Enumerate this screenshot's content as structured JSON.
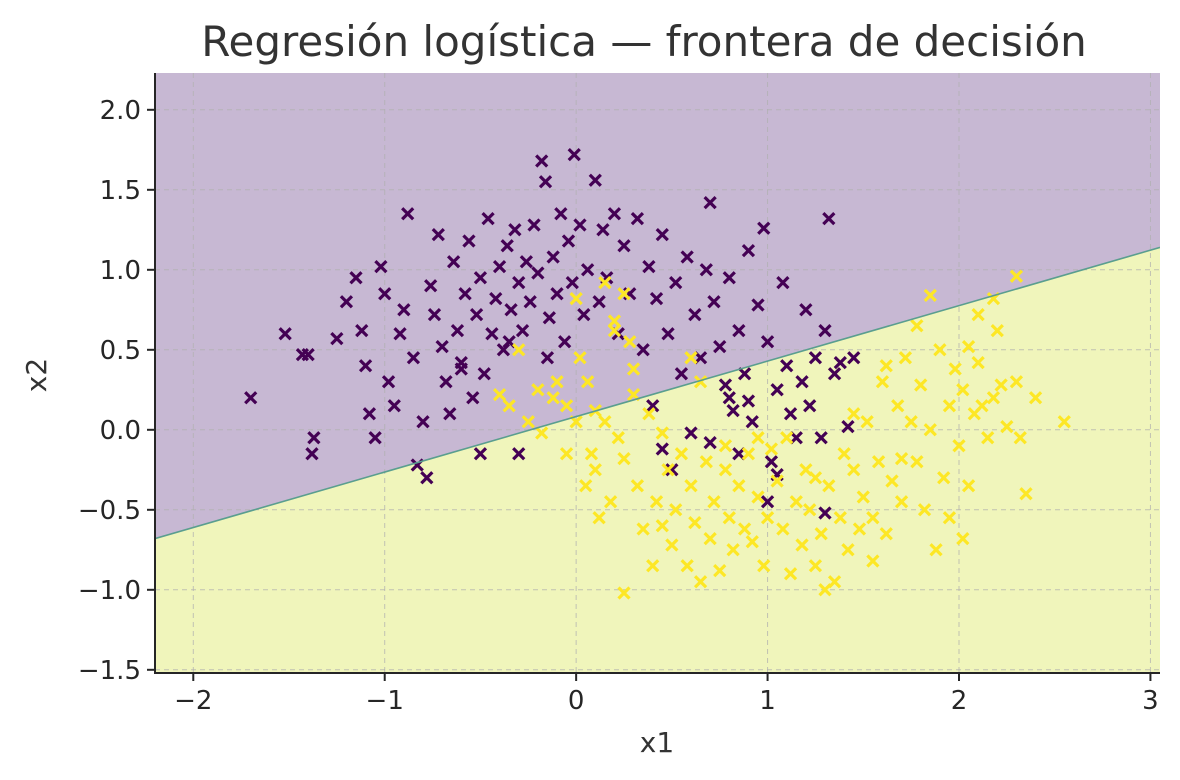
{
  "chart_data": {
    "type": "scatter",
    "title": "Regresión logística — frontera de decisión",
    "xlabel": "x1",
    "ylabel": "x2",
    "xlim": [
      -2.2,
      3.05
    ],
    "ylim": [
      -1.52,
      2.23
    ],
    "xticks": [
      -2,
      -1,
      0,
      1,
      2,
      3
    ],
    "xtick_labels": [
      "−2",
      "−1",
      "0",
      "1",
      "2",
      "3"
    ],
    "yticks": [
      -1.5,
      -1.0,
      -0.5,
      0.0,
      0.5,
      1.0,
      1.5,
      2.0
    ],
    "ytick_labels": [
      "−1.5",
      "−1.0",
      "−0.5",
      "0.0",
      "0.5",
      "1.0",
      "1.5",
      "2.0"
    ],
    "grid": true,
    "marker": "x",
    "decision_boundary": {
      "x": [
        -2.2,
        3.05
      ],
      "y": [
        -0.68,
        1.14
      ],
      "color": "#5a9e8f"
    },
    "regions": {
      "class_0_color": "#c7b8d3",
      "class_1_color": "#f0f5bb"
    },
    "series": [
      {
        "color": "#440154",
        "points": [
          [
            -1.7,
            0.2
          ],
          [
            -1.52,
            0.6
          ],
          [
            -1.43,
            0.47
          ],
          [
            -1.4,
            0.47
          ],
          [
            -1.37,
            -0.05
          ],
          [
            -1.38,
            -0.15
          ],
          [
            -1.25,
            0.57
          ],
          [
            -1.2,
            0.8
          ],
          [
            -1.15,
            0.95
          ],
          [
            -1.12,
            0.62
          ],
          [
            -1.1,
            0.4
          ],
          [
            -1.08,
            0.1
          ],
          [
            -1.05,
            -0.05
          ],
          [
            -1.02,
            1.02
          ],
          [
            -1.0,
            0.85
          ],
          [
            -0.98,
            0.3
          ],
          [
            -0.95,
            0.15
          ],
          [
            -0.92,
            0.6
          ],
          [
            -0.9,
            0.75
          ],
          [
            -0.88,
            1.35
          ],
          [
            -0.85,
            0.45
          ],
          [
            -0.83,
            -0.22
          ],
          [
            -0.8,
            0.05
          ],
          [
            -0.78,
            -0.3
          ],
          [
            -0.76,
            0.9
          ],
          [
            -0.74,
            0.72
          ],
          [
            -0.72,
            1.22
          ],
          [
            -0.7,
            0.52
          ],
          [
            -0.68,
            0.3
          ],
          [
            -0.66,
            0.1
          ],
          [
            -0.64,
            1.05
          ],
          [
            -0.62,
            0.62
          ],
          [
            -0.6,
            0.42
          ],
          [
            -0.58,
            0.85
          ],
          [
            -0.56,
            1.18
          ],
          [
            -0.54,
            0.2
          ],
          [
            -0.52,
            0.72
          ],
          [
            -0.5,
            0.95
          ],
          [
            -0.48,
            0.35
          ],
          [
            -0.46,
            1.32
          ],
          [
            -0.44,
            0.6
          ],
          [
            -0.42,
            0.82
          ],
          [
            -0.4,
            1.02
          ],
          [
            -0.38,
            0.5
          ],
          [
            -0.36,
            1.15
          ],
          [
            -0.34,
            0.75
          ],
          [
            -0.32,
            1.25
          ],
          [
            -0.3,
            0.92
          ],
          [
            -0.28,
            0.62
          ],
          [
            -0.26,
            1.05
          ],
          [
            -0.24,
            0.8
          ],
          [
            -0.22,
            1.28
          ],
          [
            -0.2,
            0.98
          ],
          [
            -0.18,
            1.68
          ],
          [
            -0.16,
            1.55
          ],
          [
            -0.14,
            0.7
          ],
          [
            -0.12,
            1.08
          ],
          [
            -0.1,
            0.85
          ],
          [
            -0.08,
            1.35
          ],
          [
            -0.06,
            0.55
          ],
          [
            -0.04,
            1.18
          ],
          [
            -0.02,
            0.92
          ],
          [
            -0.01,
            1.72
          ],
          [
            0.02,
            1.28
          ],
          [
            0.04,
            0.72
          ],
          [
            0.06,
            1.0
          ],
          [
            0.1,
            1.56
          ],
          [
            0.12,
            0.8
          ],
          [
            0.14,
            1.25
          ],
          [
            0.16,
            0.95
          ],
          [
            0.2,
            1.35
          ],
          [
            0.22,
            0.6
          ],
          [
            0.25,
            1.15
          ],
          [
            0.28,
            0.85
          ],
          [
            0.32,
            1.32
          ],
          [
            0.35,
            0.5
          ],
          [
            0.38,
            1.02
          ],
          [
            0.42,
            0.82
          ],
          [
            0.45,
            1.22
          ],
          [
            0.48,
            0.6
          ],
          [
            0.52,
            0.92
          ],
          [
            0.55,
            0.35
          ],
          [
            0.58,
            1.08
          ],
          [
            0.62,
            0.72
          ],
          [
            0.65,
            0.45
          ],
          [
            0.68,
            1.0
          ],
          [
            0.7,
            1.42
          ],
          [
            0.72,
            0.8
          ],
          [
            0.75,
            0.52
          ],
          [
            0.78,
            0.28
          ],
          [
            0.8,
            0.95
          ],
          [
            0.82,
            0.12
          ],
          [
            0.85,
            0.62
          ],
          [
            0.88,
            0.35
          ],
          [
            0.9,
            1.12
          ],
          [
            0.92,
            0.05
          ],
          [
            0.95,
            0.78
          ],
          [
            0.98,
            1.26
          ],
          [
            1.0,
            0.55
          ],
          [
            1.02,
            -0.2
          ],
          [
            1.05,
            0.25
          ],
          [
            1.08,
            0.92
          ],
          [
            1.1,
            0.4
          ],
          [
            1.12,
            0.1
          ],
          [
            1.15,
            -0.05
          ],
          [
            1.18,
            0.3
          ],
          [
            1.2,
            0.75
          ],
          [
            1.22,
            0.15
          ],
          [
            1.25,
            0.45
          ],
          [
            1.28,
            -0.05
          ],
          [
            1.3,
            0.62
          ],
          [
            1.32,
            1.32
          ],
          [
            1.35,
            0.35
          ],
          [
            1.38,
            0.42
          ],
          [
            1.42,
            0.02
          ],
          [
            1.45,
            0.45
          ],
          [
            0.45,
            -0.12
          ],
          [
            0.5,
            -0.25
          ],
          [
            0.6,
            -0.02
          ],
          [
            0.7,
            -0.08
          ],
          [
            0.8,
            0.2
          ],
          [
            0.85,
            -0.15
          ],
          [
            0.9,
            0.18
          ],
          [
            1.0,
            -0.45
          ],
          [
            1.05,
            -0.28
          ],
          [
            1.3,
            -0.52
          ],
          [
            0.4,
            0.15
          ],
          [
            -0.5,
            -0.15
          ],
          [
            -0.3,
            -0.15
          ],
          [
            -0.6,
            0.38
          ],
          [
            -0.15,
            0.45
          ],
          [
            -0.35,
            0.55
          ]
        ]
      },
      {
        "color": "#fde725",
        "points": [
          [
            -0.4,
            0.22
          ],
          [
            -0.35,
            0.15
          ],
          [
            -0.25,
            0.05
          ],
          [
            -0.2,
            0.25
          ],
          [
            -0.1,
            0.3
          ],
          [
            -0.05,
            0.15
          ],
          [
            -0.05,
            -0.15
          ],
          [
            0.0,
            0.05
          ],
          [
            0.02,
            0.45
          ],
          [
            0.05,
            -0.35
          ],
          [
            0.08,
            -0.15
          ],
          [
            0.1,
            -0.25
          ],
          [
            0.12,
            -0.55
          ],
          [
            0.15,
            0.05
          ],
          [
            0.18,
            -0.45
          ],
          [
            0.2,
            0.62
          ],
          [
            0.22,
            -0.05
          ],
          [
            0.25,
            -1.02
          ],
          [
            0.25,
            -0.18
          ],
          [
            0.28,
            0.55
          ],
          [
            0.3,
            0.22
          ],
          [
            0.32,
            -0.35
          ],
          [
            0.35,
            -0.62
          ],
          [
            0.38,
            0.1
          ],
          [
            0.4,
            -0.85
          ],
          [
            0.42,
            -0.45
          ],
          [
            0.45,
            -0.02
          ],
          [
            0.48,
            -0.25
          ],
          [
            0.5,
            -0.72
          ],
          [
            0.52,
            -0.5
          ],
          [
            0.55,
            -0.15
          ],
          [
            0.58,
            -0.85
          ],
          [
            0.6,
            -0.35
          ],
          [
            0.62,
            -0.58
          ],
          [
            0.65,
            0.3
          ],
          [
            0.68,
            -0.2
          ],
          [
            0.7,
            -0.68
          ],
          [
            0.72,
            -0.45
          ],
          [
            0.75,
            -0.88
          ],
          [
            0.78,
            -0.25
          ],
          [
            0.8,
            -0.55
          ],
          [
            0.82,
            -0.75
          ],
          [
            0.85,
            -0.35
          ],
          [
            0.88,
            -0.62
          ],
          [
            0.9,
            -0.15
          ],
          [
            0.92,
            -0.7
          ],
          [
            0.95,
            -0.42
          ],
          [
            0.98,
            -0.85
          ],
          [
            1.0,
            -0.55
          ],
          [
            1.02,
            -0.12
          ],
          [
            1.05,
            -0.32
          ],
          [
            1.08,
            -0.62
          ],
          [
            1.1,
            -0.05
          ],
          [
            1.12,
            -0.9
          ],
          [
            1.15,
            -0.45
          ],
          [
            1.18,
            -0.72
          ],
          [
            1.2,
            -0.25
          ],
          [
            1.22,
            -0.5
          ],
          [
            1.25,
            -0.85
          ],
          [
            1.28,
            -0.65
          ],
          [
            1.3,
            -1.0
          ],
          [
            1.32,
            -0.35
          ],
          [
            1.35,
            -0.95
          ],
          [
            1.38,
            -0.55
          ],
          [
            1.4,
            -0.15
          ],
          [
            1.42,
            -0.75
          ],
          [
            1.45,
            -0.25
          ],
          [
            1.48,
            -0.62
          ],
          [
            1.5,
            -0.42
          ],
          [
            1.52,
            0.05
          ],
          [
            1.55,
            -0.55
          ],
          [
            1.58,
            -0.2
          ],
          [
            1.6,
            0.3
          ],
          [
            1.62,
            -0.65
          ],
          [
            1.65,
            -0.32
          ],
          [
            1.68,
            0.15
          ],
          [
            1.7,
            -0.45
          ],
          [
            1.72,
            0.45
          ],
          [
            1.75,
            0.05
          ],
          [
            1.78,
            -0.2
          ],
          [
            1.8,
            0.28
          ],
          [
            1.82,
            -0.5
          ],
          [
            1.85,
            0.0
          ],
          [
            1.88,
            -0.75
          ],
          [
            1.9,
            0.5
          ],
          [
            1.92,
            -0.3
          ],
          [
            1.95,
            0.15
          ],
          [
            1.98,
            0.38
          ],
          [
            2.0,
            -0.1
          ],
          [
            2.02,
            0.25
          ],
          [
            2.05,
            -0.35
          ],
          [
            2.08,
            0.1
          ],
          [
            2.1,
            0.42
          ],
          [
            2.12,
            0.15
          ],
          [
            2.15,
            -0.05
          ],
          [
            2.18,
            0.2
          ],
          [
            2.2,
            0.62
          ],
          [
            2.22,
            0.28
          ],
          [
            2.25,
            0.02
          ],
          [
            2.3,
            0.3
          ],
          [
            2.32,
            -0.05
          ],
          [
            2.35,
            -0.4
          ],
          [
            2.4,
            0.2
          ],
          [
            2.55,
            0.05
          ],
          [
            2.3,
            0.96
          ],
          [
            1.85,
            0.84
          ],
          [
            2.18,
            0.82
          ],
          [
            2.1,
            0.72
          ],
          [
            0.25,
            0.85
          ],
          [
            0.15,
            0.92
          ],
          [
            0.2,
            0.68
          ],
          [
            0.0,
            0.82
          ],
          [
            0.6,
            0.45
          ],
          [
            0.3,
            0.38
          ],
          [
            -0.12,
            0.2
          ],
          [
            0.06,
            0.3
          ],
          [
            -0.3,
            0.5
          ],
          [
            0.1,
            0.12
          ],
          [
            -0.18,
            -0.02
          ],
          [
            1.62,
            0.4
          ],
          [
            1.7,
            -0.18
          ],
          [
            1.95,
            -0.55
          ],
          [
            2.05,
            0.52
          ],
          [
            1.55,
            -0.82
          ],
          [
            1.25,
            -0.3
          ],
          [
            0.95,
            -0.05
          ],
          [
            0.65,
            -0.95
          ],
          [
            0.45,
            -0.6
          ],
          [
            0.78,
            -0.1
          ],
          [
            1.45,
            0.1
          ],
          [
            2.02,
            -0.68
          ],
          [
            1.78,
            0.65
          ]
        ]
      }
    ]
  }
}
